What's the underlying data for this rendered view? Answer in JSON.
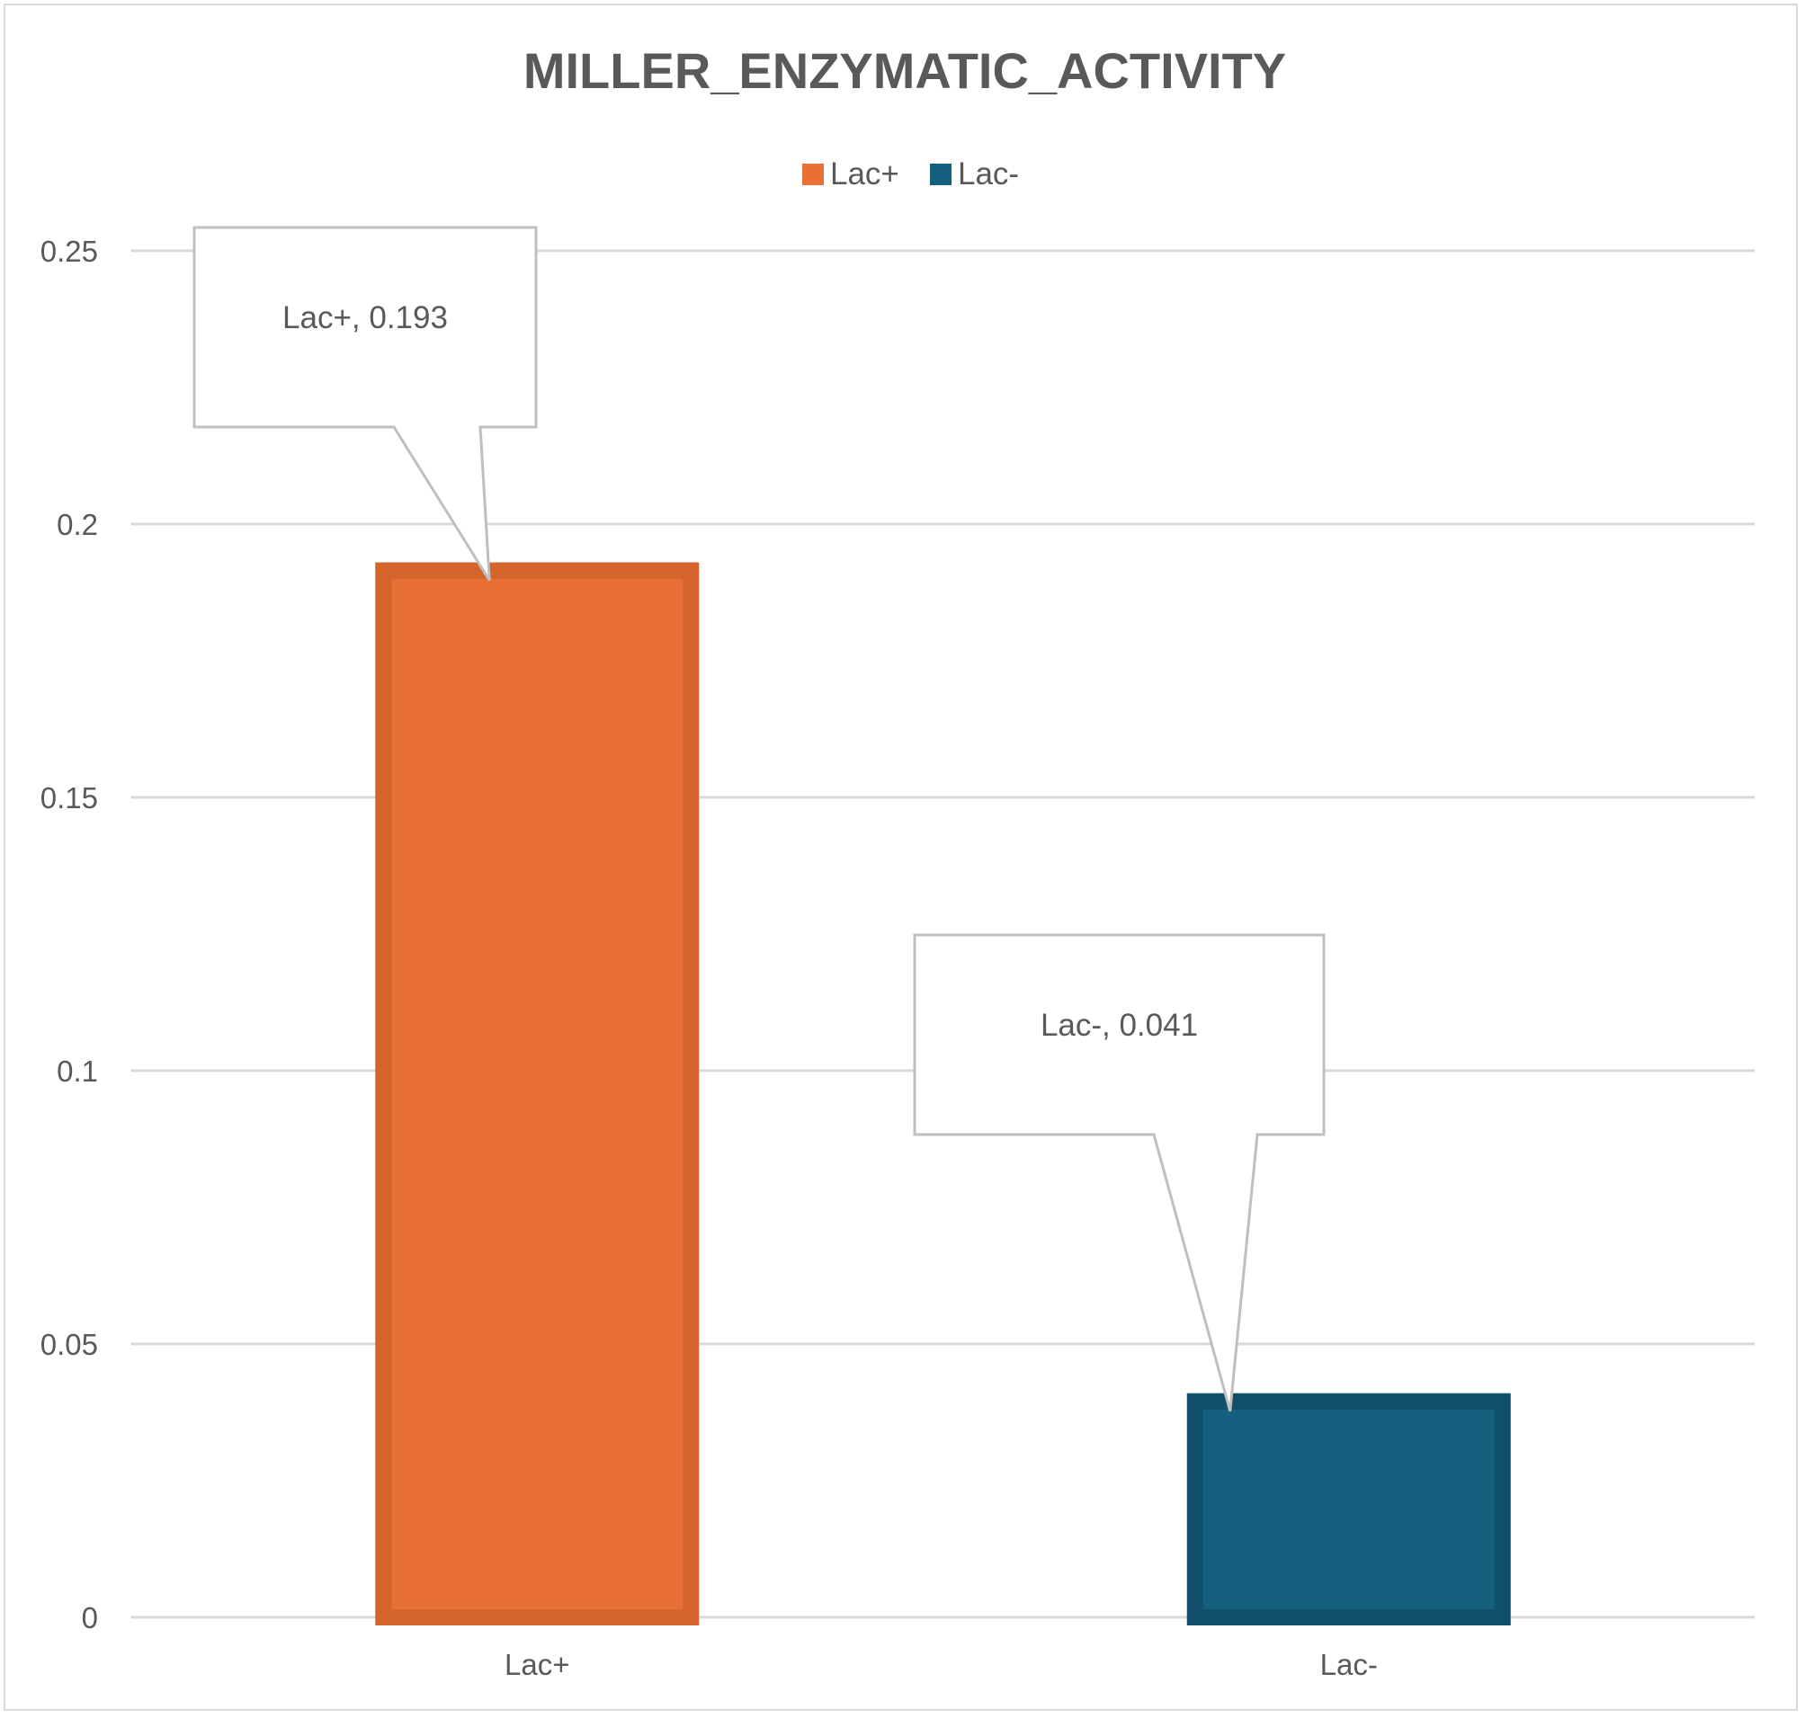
{
  "chart_data": {
    "type": "bar",
    "title": "MILLER_ENZYMATIC_ACTIVITY",
    "xlabel": "",
    "ylabel": "",
    "ylim": [
      0,
      0.25
    ],
    "yticks": [
      "0",
      "0.05",
      "0.1",
      "0.15",
      "0.2",
      "0.25"
    ],
    "grid": true,
    "legend_position": "top",
    "categories": [
      "Lac+",
      "Lac-"
    ],
    "series": [
      {
        "name": "Lac+",
        "category": "Lac+",
        "value": 0.193,
        "color": "#e87035",
        "border_color": "#d4632c",
        "label": "Lac+, 0.193"
      },
      {
        "name": "Lac-",
        "category": "Lac-",
        "value": 0.041,
        "color": "#16607f",
        "border_color": "#124f6b",
        "label": "Lac-, 0.041"
      }
    ]
  },
  "colors": {
    "title": "#595959",
    "text": "#595959",
    "gridline": "#d9d9d9",
    "callout_border": "#bfbfbf"
  }
}
